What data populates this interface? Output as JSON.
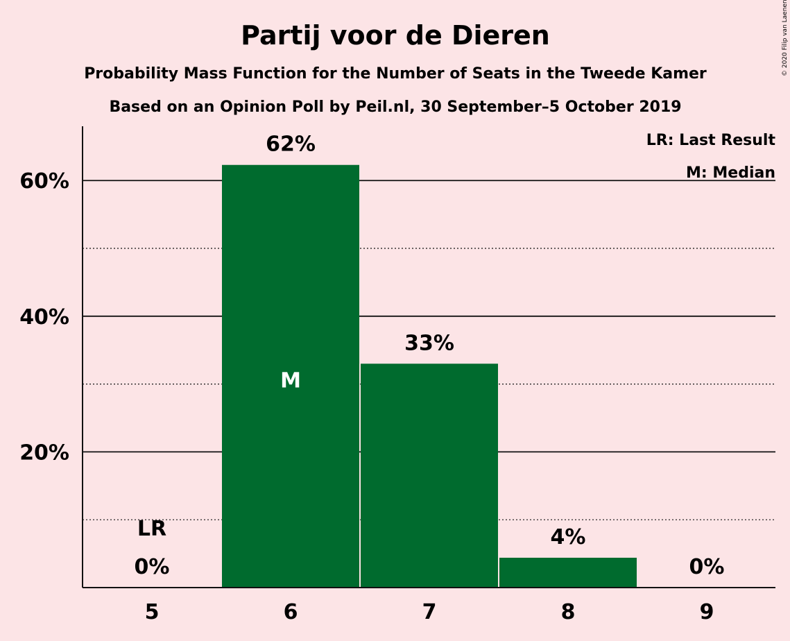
{
  "chart_data": {
    "type": "bar",
    "title": "Partij voor de Dieren",
    "subtitle_1": "Probability Mass Function for the Number of Seats in the Tweede Kamer",
    "subtitle_2": "Based on an Opinion Poll by Peil.nl, 30 September–5 October 2019",
    "copyright": "© 2020 Filip van Laenen",
    "categories": [
      "5",
      "6",
      "7",
      "8",
      "9"
    ],
    "values": [
      0,
      62.3,
      33.0,
      4.4,
      0
    ],
    "data_labels": [
      "0%",
      "62%",
      "33%",
      "4%",
      "0%"
    ],
    "ylim": [
      0,
      68
    ],
    "yticks": [
      {
        "value": 20,
        "label": "20%"
      },
      {
        "value": 40,
        "label": "40%"
      },
      {
        "value": 60,
        "label": "60%"
      }
    ],
    "minor_gridlines": [
      10,
      30,
      50
    ],
    "last_result": {
      "category": "5",
      "label": "LR"
    },
    "median": {
      "category": "6",
      "label": "M"
    },
    "legend": {
      "position": "top-right",
      "entries": [
        "LR: Last Result",
        "M: Median"
      ]
    },
    "bar_color": "#006b2e",
    "background_color": "#fce4e6"
  }
}
